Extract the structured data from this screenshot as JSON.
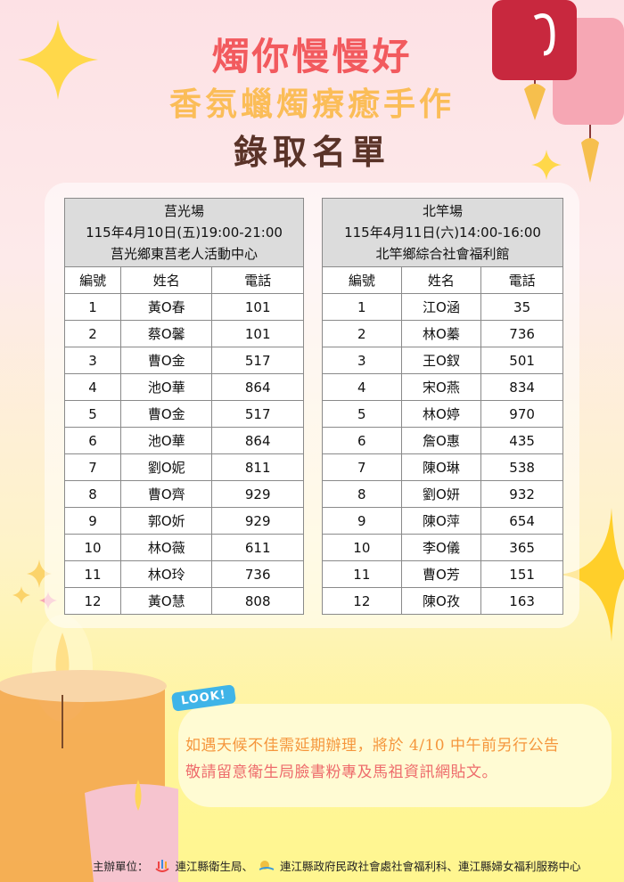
{
  "header": {
    "title": "燭你慢慢好",
    "subtitle": "香氛蠟燭療癒手作",
    "heading": "錄取名單"
  },
  "sessions": [
    {
      "venue": "莒光場",
      "datetime": "115年4月10日(五)19:00-21:00",
      "location": "莒光鄉東莒老人活動中心",
      "columns": [
        "編號",
        "姓名",
        "電話"
      ],
      "rows": [
        [
          "1",
          "黃O春",
          "101"
        ],
        [
          "2",
          "蔡O馨",
          "101"
        ],
        [
          "3",
          "曹O金",
          "517"
        ],
        [
          "4",
          "池O華",
          "864"
        ],
        [
          "5",
          "曹O金",
          "517"
        ],
        [
          "6",
          "池O華",
          "864"
        ],
        [
          "7",
          "劉O妮",
          "811"
        ],
        [
          "8",
          "曹O齊",
          "929"
        ],
        [
          "9",
          "郭O妡",
          "929"
        ],
        [
          "10",
          "林O薇",
          "611"
        ],
        [
          "11",
          "林O玲",
          "736"
        ],
        [
          "12",
          "黃O慧",
          "808"
        ]
      ]
    },
    {
      "venue": "北竿場",
      "datetime": "115年4月11日(六)14:00-16:00",
      "location": "北竿鄉綜合社會福利館",
      "columns": [
        "編號",
        "姓名",
        "電話"
      ],
      "rows": [
        [
          "1",
          "江O涵",
          "35"
        ],
        [
          "2",
          "林O蓁",
          "736"
        ],
        [
          "3",
          "王O釵",
          "501"
        ],
        [
          "4",
          "宋O燕",
          "834"
        ],
        [
          "5",
          "林O婷",
          "970"
        ],
        [
          "6",
          "詹O惠",
          "435"
        ],
        [
          "7",
          "陳O琳",
          "538"
        ],
        [
          "8",
          "劉O妍",
          "932"
        ],
        [
          "9",
          "陳O萍",
          "654"
        ],
        [
          "10",
          "李O儀",
          "365"
        ],
        [
          "11",
          "曹O芳",
          "151"
        ],
        [
          "12",
          "陳O孜",
          "163"
        ]
      ]
    }
  ],
  "notice": {
    "badge": "LOOK!",
    "line1": "如遇天候不佳需延期辦理，將於 4/10 中午前另行公告",
    "line2": "敬請留意衛生局臉書粉專及馬祖資訊網貼文。"
  },
  "footer": {
    "label": "主辦單位：",
    "org1": "連江縣衛生局、",
    "org2": "連江縣政府民政社會處社會福利科、連江縣婦女福利服務中心"
  },
  "colors": {
    "title": "#f25a5e",
    "subtitle": "#fbbd58",
    "heading": "#5a3328",
    "table_header_bg": "#dcdcdc",
    "badge": "#3fb4e8"
  }
}
